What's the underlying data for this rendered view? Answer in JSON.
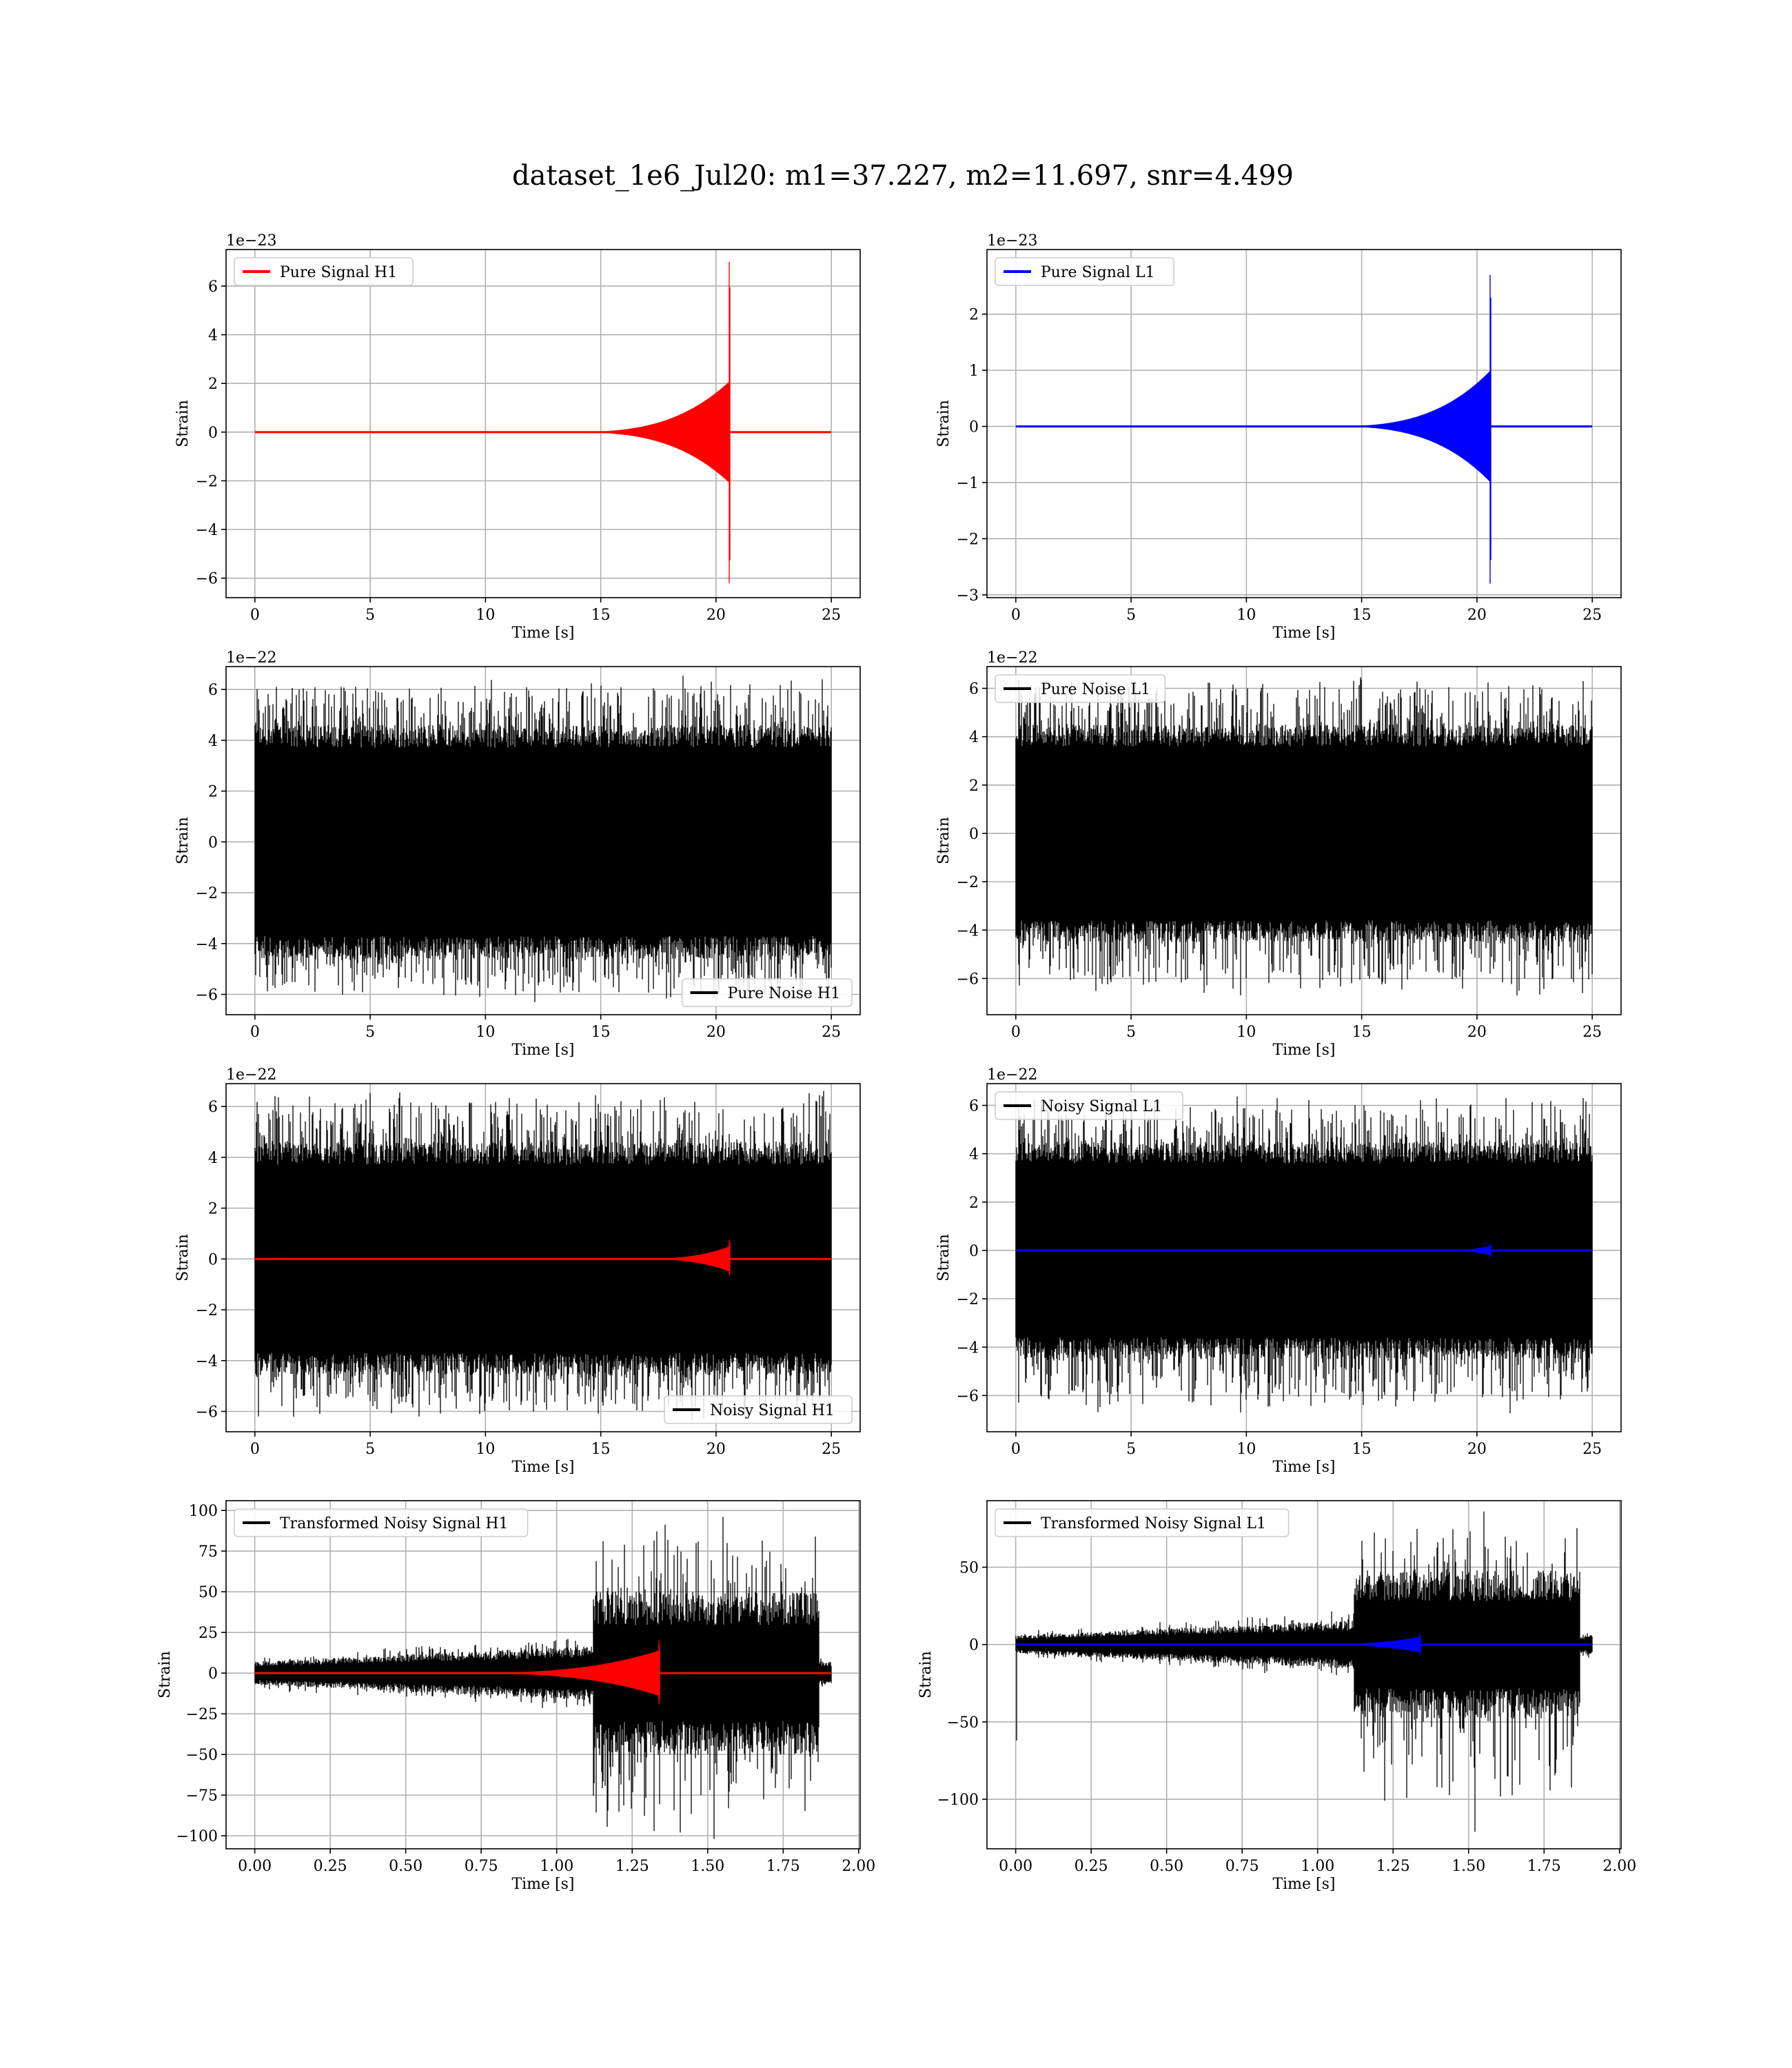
{
  "figure": {
    "suptitle": "dataset_1e6_Jul20: m1=37.227, m2=11.697, snr=4.499"
  },
  "colors": {
    "h1_signal": "#ff0000",
    "l1_signal": "#0000ff",
    "noise": "#000000",
    "grid": "#b0b0b0"
  },
  "chart_data": [
    {
      "type": "line",
      "panel": "pure-signal-h1",
      "xlabel": "Time [s]",
      "ylabel": "Strain",
      "offset_text": "1e−23",
      "xlim": [
        -1.25,
        26.25
      ],
      "ylim": [
        -6.8,
        7.5
      ],
      "xticks": [
        0,
        5,
        10,
        15,
        20,
        25
      ],
      "xtick_labels": [
        "0",
        "5",
        "10",
        "15",
        "20",
        "25"
      ],
      "yticks": [
        -6,
        -4,
        -2,
        0,
        2,
        4,
        6
      ],
      "ytick_labels": [
        "−6",
        "−4",
        "−2",
        "0",
        "2",
        "4",
        "6"
      ],
      "grid": true,
      "legend": {
        "position": "upper left",
        "entries": [
          {
            "label": "Pure Signal H1",
            "color": "#ff0000"
          }
        ]
      },
      "series": [
        {
          "name": "Pure Signal H1",
          "color": "#ff0000",
          "kind": "chirp",
          "x_start": 0,
          "x_end": 25,
          "chirp_start": 13,
          "chirp_merge": 20.6,
          "amp_end": 2.1,
          "peak_top": 7.0,
          "peak_bottom": -6.2
        }
      ]
    },
    {
      "type": "line",
      "panel": "pure-signal-l1",
      "xlabel": "Time [s]",
      "ylabel": "Strain",
      "offset_text": "1e−23",
      "xlim": [
        -1.25,
        26.25
      ],
      "ylim": [
        -3.05,
        3.15
      ],
      "xticks": [
        0,
        5,
        10,
        15,
        20,
        25
      ],
      "xtick_labels": [
        "0",
        "5",
        "10",
        "15",
        "20",
        "25"
      ],
      "yticks": [
        -3,
        -2,
        -1,
        0,
        1,
        2
      ],
      "ytick_labels": [
        "−3",
        "−2",
        "−1",
        "0",
        "1",
        "2"
      ],
      "grid": true,
      "legend": {
        "position": "upper left",
        "entries": [
          {
            "label": "Pure Signal L1",
            "color": "#0000ff"
          }
        ]
      },
      "series": [
        {
          "name": "Pure Signal L1",
          "color": "#0000ff",
          "kind": "chirp",
          "x_start": 0,
          "x_end": 25,
          "chirp_start": 13,
          "chirp_merge": 20.6,
          "amp_end": 1.0,
          "peak_top": 2.7,
          "peak_bottom": -2.8
        }
      ]
    },
    {
      "type": "line",
      "panel": "pure-noise-h1",
      "xlabel": "Time [s]",
      "ylabel": "Strain",
      "offset_text": "1e−22",
      "xlim": [
        -1.25,
        26.25
      ],
      "ylim": [
        -6.8,
        6.9
      ],
      "xticks": [
        0,
        5,
        10,
        15,
        20,
        25
      ],
      "xtick_labels": [
        "0",
        "5",
        "10",
        "15",
        "20",
        "25"
      ],
      "yticks": [
        -6,
        -4,
        -2,
        0,
        2,
        4,
        6
      ],
      "ytick_labels": [
        "−6",
        "−4",
        "−2",
        "0",
        "2",
        "4",
        "6"
      ],
      "grid": true,
      "legend": {
        "position": "lower right",
        "entries": [
          {
            "label": "Pure Noise H1",
            "color": "#000000"
          }
        ]
      },
      "series": [
        {
          "name": "Pure Noise H1",
          "color": "#000000",
          "kind": "noise",
          "x_start": 0,
          "x_end": 25,
          "core": 3.7,
          "peak_top": 6.4,
          "peak_bottom": -6.1
        }
      ]
    },
    {
      "type": "line",
      "panel": "pure-noise-l1",
      "xlabel": "Time [s]",
      "ylabel": "Strain",
      "offset_text": "1e−22",
      "xlim": [
        -1.25,
        26.25
      ],
      "ylim": [
        -7.5,
        6.9
      ],
      "xticks": [
        0,
        5,
        10,
        15,
        20,
        25
      ],
      "xtick_labels": [
        "0",
        "5",
        "10",
        "15",
        "20",
        "25"
      ],
      "yticks": [
        -6,
        -4,
        -2,
        0,
        2,
        4,
        6
      ],
      "ytick_labels": [
        "−6",
        "−4",
        "−2",
        "0",
        "2",
        "4",
        "6"
      ],
      "grid": true,
      "legend": {
        "position": "upper left",
        "entries": [
          {
            "label": "Pure Noise L1",
            "color": "#000000"
          }
        ]
      },
      "series": [
        {
          "name": "Pure Noise L1",
          "color": "#000000",
          "kind": "noise",
          "x_start": 0,
          "x_end": 25,
          "core": 3.6,
          "peak_top": 6.3,
          "peak_bottom": -6.7
        }
      ]
    },
    {
      "type": "line",
      "panel": "noisy-signal-h1",
      "xlabel": "Time [s]",
      "ylabel": "Strain",
      "offset_text": "1e−22",
      "xlim": [
        -1.25,
        26.25
      ],
      "ylim": [
        -6.8,
        6.9
      ],
      "xticks": [
        0,
        5,
        10,
        15,
        20,
        25
      ],
      "xtick_labels": [
        "0",
        "5",
        "10",
        "15",
        "20",
        "25"
      ],
      "yticks": [
        -6,
        -4,
        -2,
        0,
        2,
        4,
        6
      ],
      "ytick_labels": [
        "−6",
        "−4",
        "−2",
        "0",
        "2",
        "4",
        "6"
      ],
      "grid": true,
      "legend": {
        "position": "lower right",
        "entries": [
          {
            "label": "Noisy Signal H1",
            "color": "#000000"
          }
        ]
      },
      "series": [
        {
          "name": "Noisy Signal H1",
          "color": "#000000",
          "kind": "noise",
          "x_start": 0,
          "x_end": 25,
          "core": 3.7,
          "peak_top": 6.4,
          "peak_bottom": -6.1
        },
        {
          "color": "#ff0000",
          "kind": "chirp",
          "x_start": 0,
          "x_end": 25,
          "chirp_start": 16,
          "chirp_merge": 20.6,
          "amp_end": 0.5,
          "peak_top": 0.75,
          "peak_bottom": -0.65
        }
      ]
    },
    {
      "type": "line",
      "panel": "noisy-signal-l1",
      "xlabel": "Time [s]",
      "ylabel": "Strain",
      "offset_text": "1e−22",
      "xlim": [
        -1.25,
        26.25
      ],
      "ylim": [
        -7.5,
        6.9
      ],
      "xticks": [
        0,
        5,
        10,
        15,
        20,
        25
      ],
      "xtick_labels": [
        "0",
        "5",
        "10",
        "15",
        "20",
        "25"
      ],
      "yticks": [
        -6,
        -4,
        -2,
        0,
        2,
        4,
        6
      ],
      "ytick_labels": [
        "−6",
        "−4",
        "−2",
        "0",
        "2",
        "4",
        "6"
      ],
      "grid": true,
      "legend": {
        "position": "upper left",
        "entries": [
          {
            "label": "Noisy Signal L1",
            "color": "#000000"
          }
        ]
      },
      "series": [
        {
          "name": "Noisy Signal L1",
          "color": "#000000",
          "kind": "noise",
          "x_start": 0,
          "x_end": 25,
          "core": 3.6,
          "peak_top": 6.3,
          "peak_bottom": -6.7
        },
        {
          "color": "#0000ff",
          "kind": "chirp",
          "x_start": 0,
          "x_end": 25,
          "chirp_start": 18,
          "chirp_merge": 20.6,
          "amp_end": 0.2,
          "peak_top": 0.3,
          "peak_bottom": -0.3
        }
      ]
    },
    {
      "type": "line",
      "panel": "transformed-noisy-signal-h1",
      "xlabel": "Time [s]",
      "ylabel": "Strain",
      "offset_text": "",
      "xlim": [
        -0.095,
        2.005
      ],
      "ylim": [
        -108,
        106
      ],
      "xticks": [
        0,
        0.25,
        0.5,
        0.75,
        1.0,
        1.25,
        1.5,
        1.75,
        2.0
      ],
      "xtick_labels": [
        "0.00",
        "0.25",
        "0.50",
        "0.75",
        "1.00",
        "1.25",
        "1.50",
        "1.75",
        "2.00"
      ],
      "yticks": [
        -100,
        -75,
        -50,
        -25,
        0,
        25,
        50,
        75,
        100
      ],
      "ytick_labels": [
        "−100",
        "−75",
        "−50",
        "−25",
        "0",
        "25",
        "50",
        "75",
        "100"
      ],
      "grid": true,
      "legend": {
        "position": "upper left",
        "entries": [
          {
            "label": "Transformed Noisy Signal H1",
            "color": "#000000"
          }
        ]
      },
      "series": [
        {
          "name": "Transformed Noisy Signal H1",
          "color": "#000000",
          "kind": "whitened",
          "x_start": 0,
          "x_end": 1.91,
          "loud_start": 1.12,
          "loud_end": 1.87,
          "quiet_core": 6,
          "quiet_core_mid": 14,
          "loud_core": 42,
          "peak_top": 96,
          "peak_bottom": -102
        },
        {
          "color": "#ff0000",
          "kind": "chirp",
          "x_start": 0,
          "x_end": 1.91,
          "chirp_start": 0.6,
          "chirp_merge": 1.34,
          "amp_end": 14,
          "peak_top": 20,
          "peak_bottom": -19
        }
      ]
    },
    {
      "type": "line",
      "panel": "transformed-noisy-signal-l1",
      "xlabel": "Time [s]",
      "ylabel": "Strain",
      "offset_text": "",
      "xlim": [
        -0.095,
        2.005
      ],
      "ylim": [
        -132,
        93
      ],
      "xticks": [
        0,
        0.25,
        0.5,
        0.75,
        1.0,
        1.25,
        1.5,
        1.75,
        2.0
      ],
      "xtick_labels": [
        "0.00",
        "0.25",
        "0.50",
        "0.75",
        "1.00",
        "1.25",
        "1.50",
        "1.75",
        "2.00"
      ],
      "yticks": [
        -100,
        -50,
        0,
        50
      ],
      "ytick_labels": [
        "−100",
        "−50",
        "0",
        "50"
      ],
      "grid": true,
      "legend": {
        "position": "upper left",
        "entries": [
          {
            "label": "Transformed Noisy Signal L1",
            "color": "#000000"
          }
        ]
      },
      "series": [
        {
          "name": "Transformed Noisy Signal L1",
          "color": "#000000",
          "kind": "whitened",
          "x_start": 0,
          "x_end": 1.91,
          "loud_start": 1.12,
          "loud_end": 1.87,
          "quiet_core": 5,
          "quiet_core_mid": 13,
          "loud_core": 40,
          "peak_top": 86,
          "peak_bottom": -121,
          "start_spike": -62
        },
        {
          "color": "#0000ff",
          "kind": "chirp",
          "x_start": 0,
          "x_end": 1.91,
          "chirp_start": 0.9,
          "chirp_merge": 1.34,
          "amp_end": 5,
          "peak_top": 7,
          "peak_bottom": -7
        }
      ]
    }
  ]
}
